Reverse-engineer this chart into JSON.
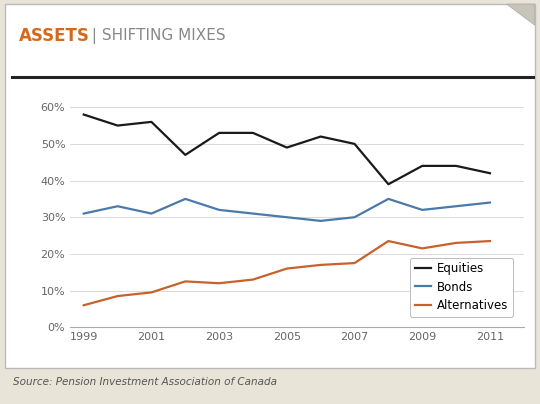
{
  "title_bold": "ASSETS",
  "title_rest": " | SHIFTING MIXES",
  "source": "Source: Pension Investment Association of Canada",
  "years": [
    1999,
    2000,
    2001,
    2002,
    2003,
    2004,
    2005,
    2006,
    2007,
    2008,
    2009,
    2010,
    2011
  ],
  "equities": [
    58,
    55,
    56,
    47,
    53,
    53,
    49,
    52,
    50,
    39,
    44,
    44,
    42
  ],
  "bonds": [
    31,
    33,
    31,
    35,
    32,
    31,
    30,
    29,
    30,
    35,
    32,
    33,
    34
  ],
  "alternatives": [
    6,
    8.5,
    9.5,
    12.5,
    12,
    13,
    16,
    17,
    17.5,
    23.5,
    21.5,
    23,
    23.5
  ],
  "equities_color": "#1a1a1a",
  "bonds_color": "#4a7aaa",
  "alternatives_color": "#c8612a",
  "ylim": [
    0,
    65
  ],
  "yticks": [
    0,
    10,
    20,
    30,
    40,
    50,
    60
  ],
  "ytick_labels": [
    "0%",
    "10%",
    "20%",
    "30%",
    "40%",
    "50%",
    "60%"
  ],
  "outer_bg": "#e8e4d8",
  "inner_bg": "#ffffff",
  "title_bg": "#ffffff",
  "title_color_bold": "#d4691e",
  "title_color_rest": "#888888",
  "line_width": 1.6,
  "legend_labels": [
    "Equities",
    "Bonds",
    "Alternatives"
  ],
  "source_color": "#555555",
  "grid_color": "#cccccc",
  "spine_color": "#aaaaaa",
  "tick_color": "#666666",
  "separator_color": "#222222"
}
